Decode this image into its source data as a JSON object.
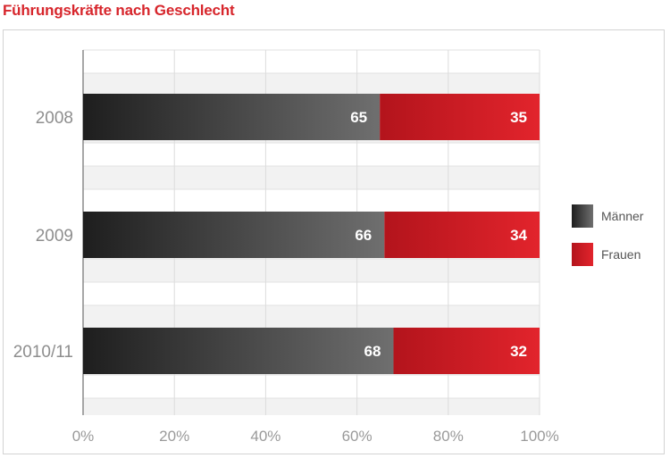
{
  "title": "Führungskräfte nach Geschlecht",
  "colors": {
    "title": "#d7262c",
    "maenner_dark": "#1e1e1e",
    "maenner_light": "#6f6f6f",
    "frauen_dark": "#b3141c",
    "frauen_light": "#e2242c"
  },
  "chart_data": {
    "type": "bar",
    "orientation": "horizontal",
    "stacked": true,
    "categories": [
      "2008",
      "2009",
      "2010/11"
    ],
    "series": [
      {
        "name": "Männer",
        "values": [
          65,
          66,
          68
        ]
      },
      {
        "name": "Frauen",
        "values": [
          35,
          34,
          32
        ]
      }
    ],
    "xlim": [
      0,
      100
    ],
    "xticks": [
      "0%",
      "20%",
      "40%",
      "60%",
      "80%",
      "100%"
    ],
    "grid": true,
    "legend": "right"
  }
}
